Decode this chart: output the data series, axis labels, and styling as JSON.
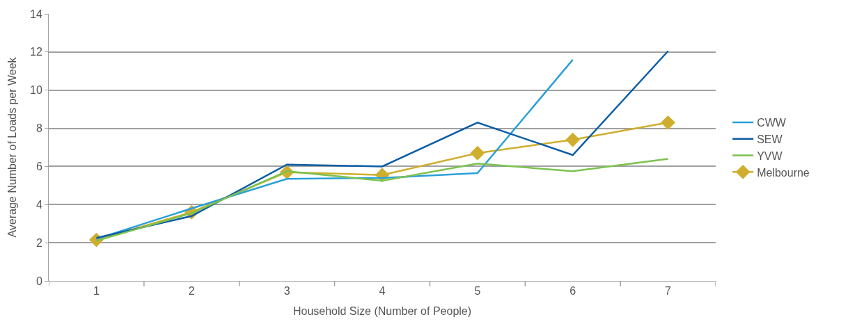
{
  "chart_data": {
    "type": "line",
    "xlabel": "Household Size (Number of People)",
    "ylabel": "Average Number of Loads per Week",
    "categories": [
      "1",
      "2",
      "3",
      "4",
      "5",
      "6",
      "7"
    ],
    "series": [
      {
        "name": "CWW",
        "color": "#2a9fd8",
        "marker": "none",
        "values": [
          2.2,
          3.8,
          5.35,
          5.4,
          5.65,
          11.6,
          null
        ]
      },
      {
        "name": "SEW",
        "color": "#0b5da6",
        "marker": "none",
        "values": [
          2.25,
          3.4,
          6.1,
          6.0,
          8.3,
          6.6,
          12.05
        ]
      },
      {
        "name": "YVW",
        "color": "#7cc24f",
        "marker": "none",
        "values": [
          2.1,
          3.55,
          5.75,
          5.25,
          6.15,
          5.75,
          6.4
        ]
      },
      {
        "name": "Melbourne",
        "color": "#cfae2f",
        "marker": "diamond",
        "values": [
          2.15,
          3.6,
          5.7,
          5.55,
          6.7,
          7.4,
          8.3
        ]
      }
    ],
    "ylim": [
      0,
      14
    ],
    "yticks": [
      0,
      2,
      4,
      6,
      8,
      10,
      12,
      14
    ],
    "grid": "y",
    "legend": "right"
  }
}
